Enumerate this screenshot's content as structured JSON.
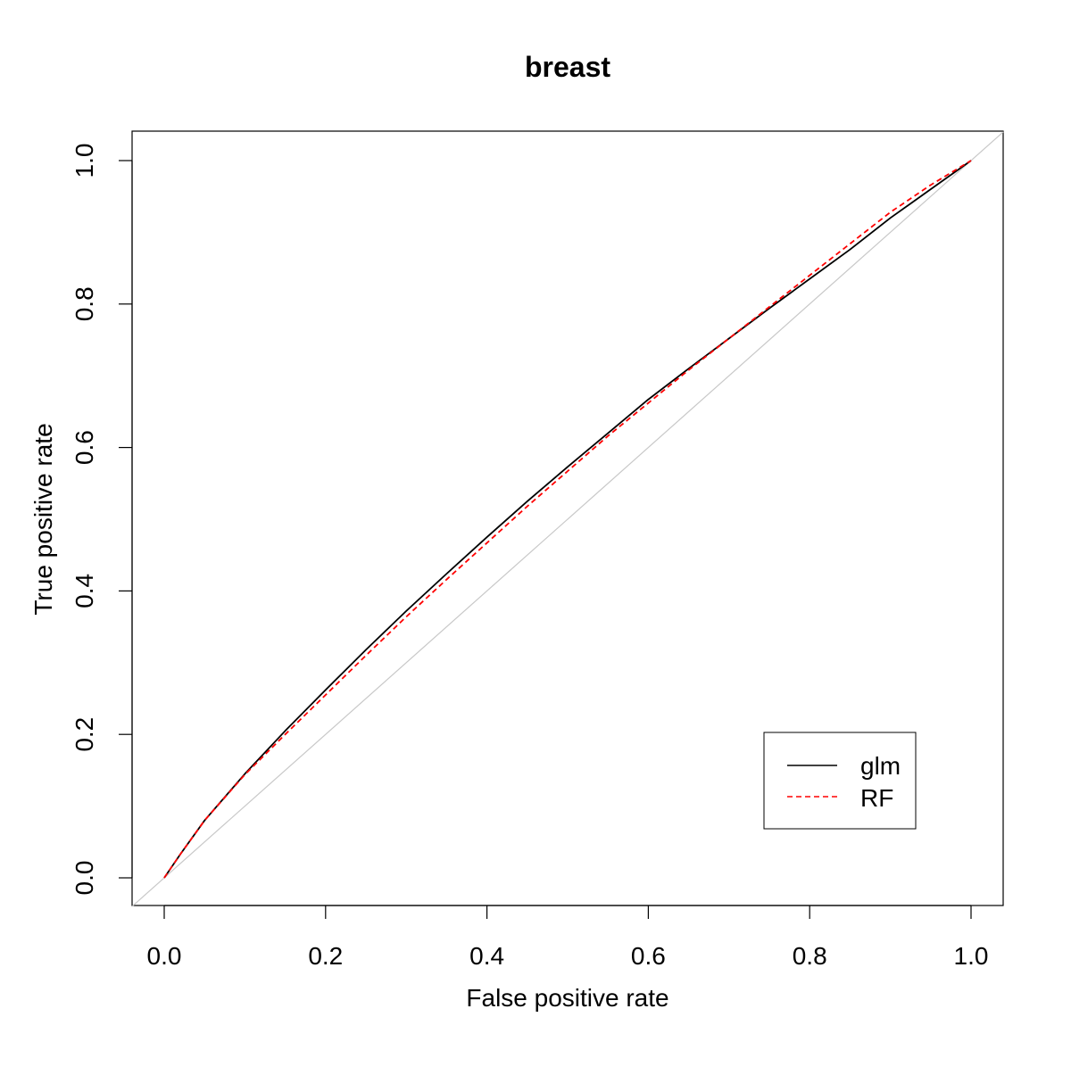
{
  "chart_data": {
    "type": "line",
    "title": "breast",
    "xlabel": "False positive rate",
    "ylabel": "True positive rate",
    "xlim": [
      0.0,
      1.0
    ],
    "ylim": [
      0.0,
      1.0
    ],
    "x_ticks": [
      "0.0",
      "0.2",
      "0.4",
      "0.6",
      "0.8",
      "1.0"
    ],
    "y_ticks": [
      "0.0",
      "0.2",
      "0.4",
      "0.6",
      "0.8",
      "1.0"
    ],
    "grid": false,
    "legend_position": "bottom-right",
    "reference_line": {
      "x": [
        0.0,
        1.0
      ],
      "y": [
        0.0,
        1.0
      ],
      "color": "#c8c8c8"
    },
    "series": [
      {
        "name": "glm",
        "color": "#000000",
        "line_style": "solid",
        "x": [
          0.0,
          0.02,
          0.05,
          0.1,
          0.15,
          0.2,
          0.25,
          0.3,
          0.35,
          0.4,
          0.45,
          0.5,
          0.55,
          0.6,
          0.65,
          0.7,
          0.75,
          0.8,
          0.85,
          0.9,
          0.95,
          1.0
        ],
        "y": [
          0.0,
          0.033,
          0.08,
          0.145,
          0.205,
          0.262,
          0.318,
          0.372,
          0.424,
          0.475,
          0.525,
          0.573,
          0.62,
          0.667,
          0.71,
          0.752,
          0.794,
          0.835,
          0.876,
          0.92,
          0.96,
          1.0
        ]
      },
      {
        "name": "RF",
        "color": "#ff0000",
        "line_style": "dashed",
        "x": [
          0.0,
          0.02,
          0.05,
          0.1,
          0.15,
          0.2,
          0.25,
          0.3,
          0.35,
          0.4,
          0.45,
          0.5,
          0.55,
          0.6,
          0.65,
          0.7,
          0.75,
          0.8,
          0.85,
          0.9,
          0.95,
          1.0
        ],
        "y": [
          0.0,
          0.033,
          0.08,
          0.144,
          0.2,
          0.255,
          0.31,
          0.364,
          0.416,
          0.467,
          0.518,
          0.567,
          0.616,
          0.662,
          0.708,
          0.752,
          0.796,
          0.84,
          0.884,
          0.928,
          0.966,
          1.0
        ]
      }
    ]
  }
}
